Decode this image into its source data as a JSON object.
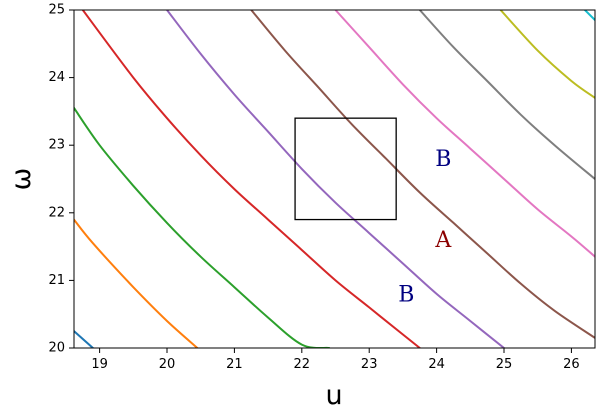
{
  "chart_data": {
    "type": "line",
    "title": "",
    "xlabel": "u",
    "ylabel": "ω",
    "xlim": [
      18.62,
      26.35
    ],
    "ylim": [
      20,
      25
    ],
    "xticks": [
      19,
      20,
      21,
      22,
      23,
      24,
      25,
      26
    ],
    "yticks": [
      20,
      21,
      22,
      23,
      24,
      25
    ],
    "grid": false,
    "series": [
      {
        "color": "#1f77b4",
        "x": [
          18.62,
          18.9
        ],
        "y": [
          20.25,
          20.0
        ]
      },
      {
        "color": "#ff7f0e",
        "x": [
          18.62,
          18.9,
          19.5,
          20.0,
          20.45
        ],
        "y": [
          21.9,
          21.55,
          20.9,
          20.4,
          20.0
        ]
      },
      {
        "color": "#2ca02c",
        "x": [
          18.62,
          19.0,
          19.5,
          20.0,
          20.5,
          21.0,
          21.5,
          22.0,
          22.4
        ],
        "y": [
          23.55,
          23.0,
          22.4,
          21.85,
          21.35,
          20.9,
          20.45,
          20.05,
          20.0
        ]
      },
      {
        "color": "#d62728",
        "x": [
          18.75,
          19.5,
          20.0,
          20.5,
          21.0,
          21.5,
          22.0,
          22.5,
          23.0,
          23.5,
          23.75
        ],
        "y": [
          25.0,
          24.0,
          23.4,
          22.85,
          22.35,
          21.9,
          21.45,
          21.0,
          20.6,
          20.2,
          20.0
        ]
      },
      {
        "color": "#9467bd",
        "x": [
          20.0,
          20.5,
          21.0,
          21.5,
          22.0,
          22.5,
          23.0,
          23.5,
          24.0,
          24.5,
          25.0
        ],
        "y": [
          25.0,
          24.35,
          23.75,
          23.2,
          22.65,
          22.15,
          21.7,
          21.25,
          20.8,
          20.4,
          20.0
        ]
      },
      {
        "color": "#8c564b",
        "x": [
          21.25,
          21.75,
          22.25,
          22.75,
          23.25,
          23.75,
          24.25,
          24.75,
          25.25,
          25.75,
          26.35
        ],
        "y": [
          25.0,
          24.4,
          23.85,
          23.3,
          22.8,
          22.3,
          21.85,
          21.4,
          20.95,
          20.55,
          20.15
        ]
      },
      {
        "color": "#e377c2",
        "x": [
          22.5,
          23.0,
          23.5,
          24.0,
          24.5,
          25.0,
          25.5,
          26.0,
          26.35
        ],
        "y": [
          25.0,
          24.45,
          23.9,
          23.4,
          22.95,
          22.5,
          22.05,
          21.65,
          21.35
        ]
      },
      {
        "color": "#7f7f7f",
        "x": [
          23.75,
          24.25,
          24.75,
          25.25,
          25.75,
          26.35
        ],
        "y": [
          25.0,
          24.45,
          23.95,
          23.45,
          23.0,
          22.5
        ]
      },
      {
        "color": "#bcbd22",
        "x": [
          24.95,
          25.5,
          26.0,
          26.35
        ],
        "y": [
          25.0,
          24.4,
          23.95,
          23.7
        ]
      },
      {
        "color": "#17becf",
        "x": [
          26.2,
          26.35
        ],
        "y": [
          25.0,
          24.85
        ]
      }
    ],
    "rectangle": {
      "x0": 21.9,
      "x1": 23.4,
      "y0": 21.9,
      "y1": 23.4,
      "color": "#000000"
    },
    "annotations": [
      {
        "text": "B",
        "x": 24.1,
        "y": 22.78,
        "color": "#000080"
      },
      {
        "text": "A",
        "x": 24.1,
        "y": 21.58,
        "color": "#8b0000"
      },
      {
        "text": "B",
        "x": 23.55,
        "y": 20.78,
        "color": "#000080"
      }
    ]
  }
}
